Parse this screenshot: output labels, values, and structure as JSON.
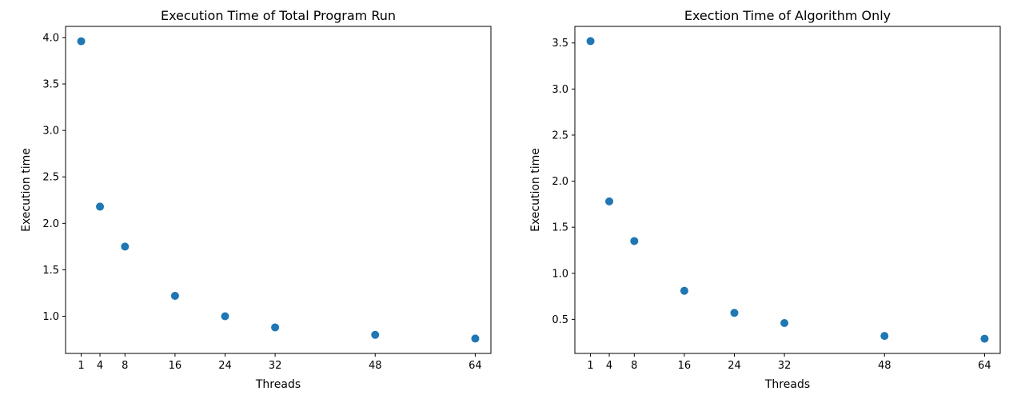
{
  "chart_data": [
    {
      "type": "scatter",
      "title": "Execution Time of Total Program Run",
      "xlabel": "Threads",
      "ylabel": "Execution time",
      "x": [
        1,
        4,
        8,
        16,
        24,
        32,
        48,
        64
      ],
      "y": [
        3.96,
        2.18,
        1.75,
        1.22,
        1.0,
        0.88,
        0.8,
        0.76
      ],
      "xticks": [
        "1",
        "4",
        "8",
        "16",
        "24",
        "32",
        "48",
        "64"
      ],
      "yticks": [
        "1.0",
        "1.5",
        "2.0",
        "2.5",
        "3.0",
        "3.5",
        "4.0"
      ],
      "xlim": [
        -1.5,
        66.5
      ],
      "ylim": [
        0.6,
        4.12
      ],
      "grid": false,
      "marker_color": "#1f77b4"
    },
    {
      "type": "scatter",
      "title": "Exection Time of Algorithm Only",
      "xlabel": "Threads",
      "ylabel": "Execution time",
      "x": [
        1,
        4,
        8,
        16,
        24,
        32,
        48,
        64
      ],
      "y": [
        3.52,
        1.78,
        1.35,
        0.81,
        0.57,
        0.46,
        0.32,
        0.29
      ],
      "xticks": [
        "1",
        "4",
        "8",
        "16",
        "24",
        "32",
        "48",
        "64"
      ],
      "yticks": [
        "0.5",
        "1.0",
        "1.5",
        "2.0",
        "2.5",
        "3.0",
        "3.5"
      ],
      "xlim": [
        -1.5,
        66.5
      ],
      "ylim": [
        0.13,
        3.68
      ],
      "grid": false,
      "marker_color": "#1f77b4"
    }
  ]
}
